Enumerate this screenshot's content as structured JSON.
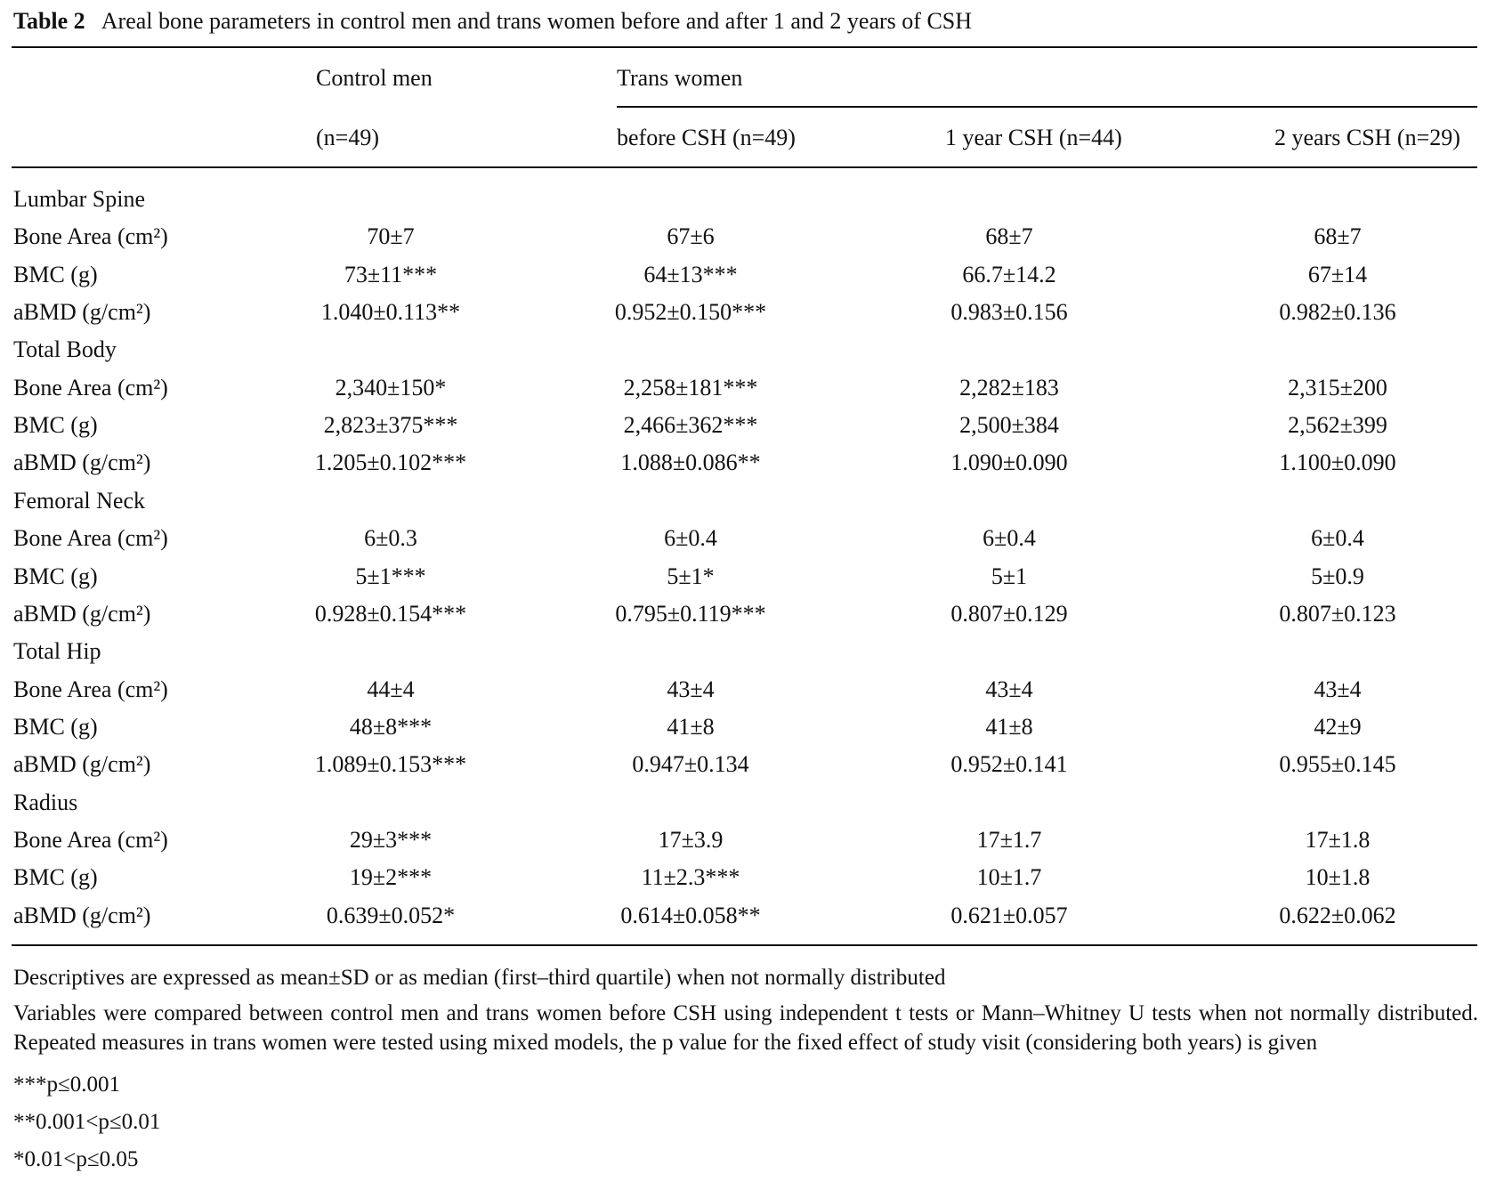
{
  "caption": {
    "label": "Table 2",
    "text": "Areal bone parameters in control men and trans women before and after 1 and 2 years of CSH"
  },
  "table": {
    "group_headers": [
      "Control men",
      "Trans women"
    ],
    "column_headers": [
      "(n=49)",
      "before CSH (n=49)",
      "1 year CSH (n=44)",
      "2 years CSH (n=29)"
    ],
    "sections": [
      {
        "name": "Lumbar Spine",
        "rows": [
          {
            "label": "Bone Area (cm²)",
            "cells": [
              "70±7",
              "67±6",
              "68±7",
              "68±7"
            ]
          },
          {
            "label": "BMC (g)",
            "cells": [
              "73±11***",
              "64±13***",
              "66.7±14.2",
              "67±14"
            ]
          },
          {
            "label": "aBMD (g/cm²)",
            "cells": [
              "1.040±0.113**",
              "0.952±0.150***",
              "0.983±0.156",
              "0.982±0.136"
            ]
          }
        ]
      },
      {
        "name": "Total Body",
        "rows": [
          {
            "label": "Bone Area (cm²)",
            "cells": [
              "2,340±150*",
              "2,258±181***",
              "2,282±183",
              "2,315±200"
            ]
          },
          {
            "label": "BMC (g)",
            "cells": [
              "2,823±375***",
              "2,466±362***",
              "2,500±384",
              "2,562±399"
            ]
          },
          {
            "label": "aBMD (g/cm²)",
            "cells": [
              "1.205±0.102***",
              "1.088±0.086**",
              "1.090±0.090",
              "1.100±0.090"
            ]
          }
        ]
      },
      {
        "name": "Femoral Neck",
        "rows": [
          {
            "label": "Bone Area (cm²)",
            "cells": [
              "6±0.3",
              "6±0.4",
              "6±0.4",
              "6±0.4"
            ]
          },
          {
            "label": "BMC (g)",
            "cells": [
              "5±1***",
              "5±1*",
              "5±1",
              "5±0.9"
            ]
          },
          {
            "label": "aBMD (g/cm²)",
            "cells": [
              "0.928±0.154***",
              "0.795±0.119***",
              "0.807±0.129",
              "0.807±0.123"
            ]
          }
        ]
      },
      {
        "name": "Total Hip",
        "rows": [
          {
            "label": "Bone Area (cm²)",
            "cells": [
              "44±4",
              "43±4",
              "43±4",
              "43±4"
            ]
          },
          {
            "label": "BMC (g)",
            "cells": [
              "48±8***",
              "41±8",
              "41±8",
              "42±9"
            ]
          },
          {
            "label": "aBMD (g/cm²)",
            "cells": [
              "1.089±0.153***",
              "0.947±0.134",
              "0.952±0.141",
              "0.955±0.145"
            ]
          }
        ]
      },
      {
        "name": "Radius",
        "rows": [
          {
            "label": "Bone Area (cm²)",
            "cells": [
              "29±3***",
              "17±3.9",
              "17±1.7",
              "17±1.8"
            ]
          },
          {
            "label": "BMC (g)",
            "cells": [
              "19±2***",
              "11±2.3***",
              "10±1.7",
              "10±1.8"
            ]
          },
          {
            "label": "aBMD (g/cm²)",
            "cells": [
              "0.639±0.052*",
              "0.614±0.058**",
              "0.621±0.057",
              "0.622±0.062"
            ]
          }
        ]
      }
    ]
  },
  "footnotes": [
    "Descriptives are expressed as mean±SD or as median (first–third quartile) when not normally distributed",
    "Variables were compared between control men and trans women before CSH using independent t tests or Mann–Whitney U tests when not normally distributed. Repeated measures in trans women were tested using mixed models, the p value for the fixed effect of study visit (considering both years) is given",
    "***p≤0.001",
    "**0.001<p≤0.01",
    "*0.01<p≤0.05"
  ]
}
